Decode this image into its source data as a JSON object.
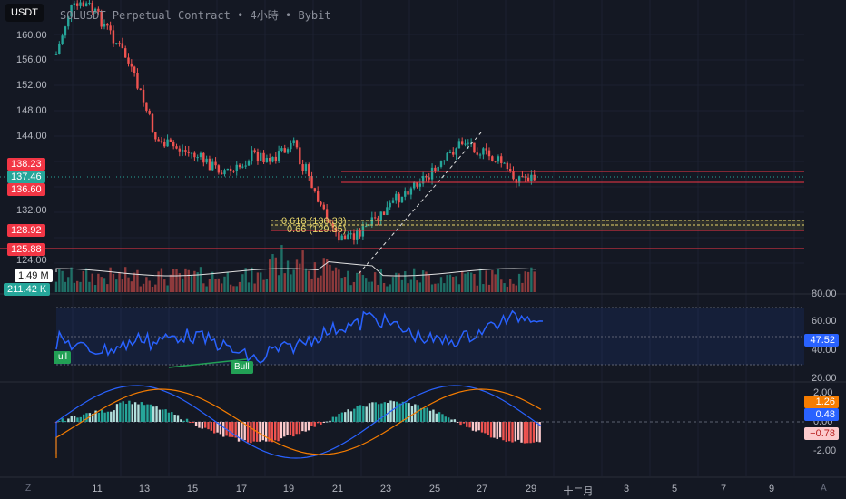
{
  "header": {
    "currency_button": "USDT",
    "title": "SOLUSDT Perpetual Contract",
    "sep1": "•",
    "interval": "4小時",
    "sep2": "•",
    "exchange": "Bybit"
  },
  "price_axis": {
    "ticks": [
      "160.00",
      "156.00",
      "152.00",
      "148.00",
      "144.00",
      "132.00",
      "128.00",
      "124.00"
    ],
    "tags": [
      {
        "text": "138.23",
        "color": "#f23645"
      },
      {
        "text": "137.46",
        "color": "#26a69a"
      },
      {
        "text": "136.60",
        "color": "#f23645"
      },
      {
        "text": "128.92",
        "color": "#f23645"
      },
      {
        "text": "125.88",
        "color": "#f23645"
      }
    ]
  },
  "volume": {
    "ma_label": "1.49 M",
    "vol_label": "211.42 K"
  },
  "fib_labels": [
    "0.618 (130.33)",
    "0.66 (129.35)"
  ],
  "rsi": {
    "ticks": [
      "80.00",
      "60.00",
      "40.00",
      "20.00"
    ],
    "value_tag": "47.52",
    "bull_label": "Bull",
    "bull_label_left": "ull"
  },
  "macd": {
    "ticks": [
      "2.00",
      "0.00",
      "-2.00"
    ],
    "tags": [
      {
        "text": "1.26",
        "color": "#f57c00"
      },
      {
        "text": "0.48",
        "color": "#2962ff"
      },
      {
        "text": "−0.78",
        "color": "#fccbcd"
      }
    ]
  },
  "time_axis": {
    "labels": [
      "11",
      "13",
      "15",
      "17",
      "19",
      "21",
      "23",
      "25",
      "27",
      "29",
      "十二月",
      "3",
      "5",
      "7",
      "9"
    ],
    "left_corner": "Z",
    "right_corner": "A"
  },
  "colors": {
    "background": "#141823",
    "up": "#26a69a",
    "down": "#ef5350",
    "rsi_line": "#2962ff",
    "macd_signal": "#f57c00",
    "fib_yellow": "#e8d66b",
    "support_red": "#f23645"
  }
}
